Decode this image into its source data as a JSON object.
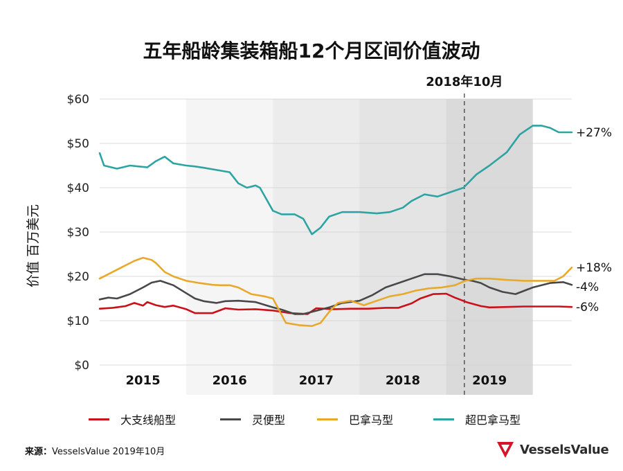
{
  "chart_data": {
    "type": "line",
    "title": "五年船龄集装箱船12个月区间价值波动",
    "ylabel": "价值 百万美元",
    "xlabel": "",
    "ylim": [
      0,
      60
    ],
    "y_ticks": [
      "$0",
      "$10",
      "$20",
      "$30",
      "$40",
      "$50",
      "$60"
    ],
    "y_tick_values": [
      0,
      10,
      20,
      30,
      40,
      50,
      60
    ],
    "year_labels": [
      "2015",
      "2016",
      "2017",
      "2018",
      "2019"
    ],
    "x_range": [
      2014.5,
      2019.95
    ],
    "annotation": {
      "label": "2018年10月",
      "x": 2018.71
    },
    "series": [
      {
        "name": "大支线船型",
        "color": "#cc1019",
        "end_label": "-6%",
        "x": [
          2014.5,
          2014.65,
          2014.8,
          2014.9,
          2015.0,
          2015.05,
          2015.15,
          2015.25,
          2015.35,
          2015.5,
          2015.6,
          2015.8,
          2015.95,
          2016.1,
          2016.3,
          2016.5,
          2016.7,
          2016.9,
          2017.0,
          2017.2,
          2017.4,
          2017.6,
          2017.8,
          2017.95,
          2018.1,
          2018.2,
          2018.35,
          2018.5,
          2018.6,
          2018.75,
          2018.9,
          2019.0,
          2019.2,
          2019.4,
          2019.6,
          2019.8,
          2019.95
        ],
        "y": [
          12.7,
          12.9,
          13.3,
          14.0,
          13.4,
          14.2,
          13.5,
          13.1,
          13.4,
          12.6,
          11.7,
          11.7,
          12.8,
          12.5,
          12.6,
          12.3,
          11.7,
          11.5,
          12.8,
          12.6,
          12.7,
          12.7,
          12.9,
          12.9,
          13.9,
          15.0,
          16.0,
          16.1,
          15.2,
          14.1,
          13.3,
          13.0,
          13.1,
          13.2,
          13.2,
          13.2,
          13.1
        ]
      },
      {
        "name": "灵便型",
        "color": "#48484a",
        "end_label": "-4%",
        "x": [
          2014.5,
          2014.6,
          2014.7,
          2014.85,
          2015.0,
          2015.1,
          2015.2,
          2015.35,
          2015.5,
          2015.6,
          2015.7,
          2015.85,
          2015.95,
          2016.1,
          2016.3,
          2016.5,
          2016.6,
          2016.75,
          2016.85,
          2016.95,
          2017.05,
          2017.15,
          2017.3,
          2017.5,
          2017.65,
          2017.8,
          2017.95,
          2018.1,
          2018.25,
          2018.4,
          2018.55,
          2018.7,
          2018.8,
          2018.9,
          2019.0,
          2019.15,
          2019.3,
          2019.5,
          2019.7,
          2019.85,
          2019.95
        ],
        "y": [
          14.8,
          15.2,
          15.0,
          16.0,
          17.5,
          18.6,
          19.0,
          18.0,
          16.2,
          15.0,
          14.4,
          14.0,
          14.4,
          14.5,
          14.2,
          13.0,
          12.5,
          11.5,
          11.5,
          12.0,
          12.5,
          13.0,
          14.0,
          14.5,
          15.8,
          17.5,
          18.5,
          19.5,
          20.5,
          20.5,
          20.0,
          19.3,
          19.0,
          18.5,
          17.5,
          16.5,
          16.0,
          17.5,
          18.5,
          18.7,
          18.1
        ]
      },
      {
        "name": "巴拿马型",
        "color": "#e8a92b",
        "end_label": "+18%",
        "x": [
          2014.5,
          2014.6,
          2014.75,
          2014.9,
          2015.0,
          2015.1,
          2015.15,
          2015.25,
          2015.35,
          2015.5,
          2015.65,
          2015.8,
          2015.9,
          2016.0,
          2016.1,
          2016.25,
          2016.4,
          2016.5,
          2016.65,
          2016.8,
          2016.95,
          2017.05,
          2017.15,
          2017.25,
          2017.4,
          2017.55,
          2017.7,
          2017.85,
          2018.0,
          2018.15,
          2018.3,
          2018.45,
          2018.6,
          2018.72,
          2018.85,
          2019.0,
          2019.2,
          2019.4,
          2019.6,
          2019.75,
          2019.85,
          2019.95
        ],
        "y": [
          19.5,
          20.5,
          22.0,
          23.5,
          24.2,
          23.7,
          23.0,
          21.0,
          20.0,
          19.0,
          18.5,
          18.1,
          18.0,
          18.0,
          17.5,
          16.0,
          15.5,
          15.0,
          9.5,
          9.0,
          8.8,
          9.5,
          12.0,
          14.0,
          14.5,
          13.5,
          14.5,
          15.5,
          16.0,
          16.8,
          17.3,
          17.5,
          18.0,
          19.0,
          19.5,
          19.5,
          19.2,
          19.0,
          19.0,
          19.0,
          20.0,
          22.0
        ]
      },
      {
        "name": "超巴拿马型",
        "color": "#2ea3a3",
        "end_label": "+27%",
        "x": [
          2014.5,
          2014.55,
          2014.7,
          2014.85,
          2014.95,
          2015.05,
          2015.15,
          2015.25,
          2015.35,
          2015.5,
          2015.6,
          2015.7,
          2015.85,
          2016.0,
          2016.1,
          2016.2,
          2016.3,
          2016.35,
          2016.5,
          2016.6,
          2016.75,
          2016.85,
          2016.95,
          2017.05,
          2017.15,
          2017.3,
          2017.5,
          2017.7,
          2017.85,
          2018.0,
          2018.1,
          2018.25,
          2018.4,
          2018.55,
          2018.7,
          2018.85,
          2019.0,
          2019.1,
          2019.2,
          2019.35,
          2019.5,
          2019.6,
          2019.7,
          2019.8,
          2019.95
        ],
        "y": [
          47.8,
          45.0,
          44.3,
          45.0,
          44.8,
          44.6,
          46.0,
          47.0,
          45.5,
          45.0,
          44.8,
          44.5,
          44.0,
          43.5,
          41.0,
          40.0,
          40.5,
          40.0,
          34.8,
          34.0,
          34.0,
          33.0,
          29.5,
          31.0,
          33.5,
          34.5,
          34.5,
          34.2,
          34.5,
          35.5,
          37.0,
          38.5,
          38.0,
          39.0,
          40.0,
          43.0,
          45.0,
          46.5,
          48.0,
          52.0,
          54.0,
          54.0,
          53.5,
          52.5,
          52.5
        ]
      }
    ]
  },
  "source": {
    "label": "来源：",
    "text": "VesselsValue 2019年10月"
  },
  "logo": {
    "text": "VesselsValue"
  }
}
